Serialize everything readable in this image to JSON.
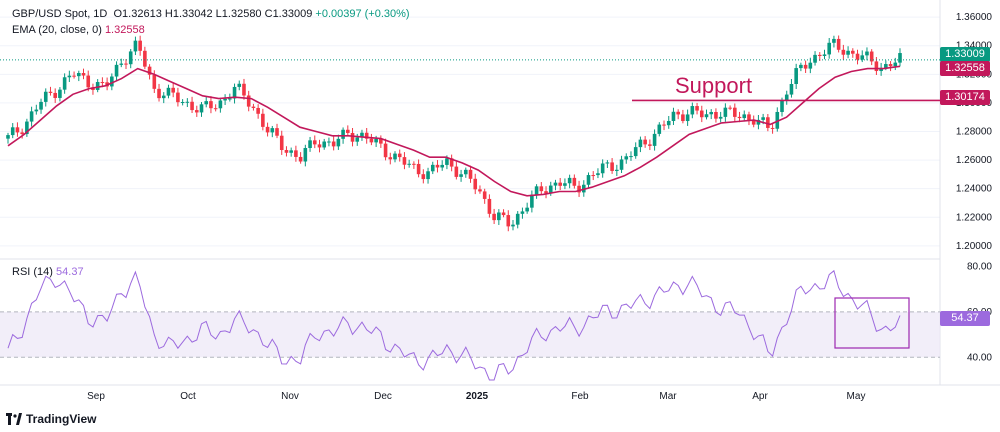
{
  "header": {
    "symbol": "GBP/USD Spot, 1D",
    "open": "O1.32613",
    "high": "H1.33042",
    "low": "L1.32580",
    "close": "C1.33009",
    "change": "+0.00397 (+0.30%)",
    "ema_label": "EMA (20, close, 0)",
    "ema_value": "1.32558",
    "rsi_label": "RSI (14)",
    "rsi_value": "54.37"
  },
  "price_tags": {
    "last": "1.33009",
    "ema": "1.32558",
    "support": "1.30174"
  },
  "annotations": {
    "support_text": "Support"
  },
  "branding": {
    "name": "TradingView"
  },
  "colors": {
    "up": "#089981",
    "down": "#f23645",
    "ema": "#c2185b",
    "rsi": "#9c6ade",
    "support": "#c2185b"
  },
  "chart_data": [
    {
      "type": "candlestick",
      "title": "GBP/USD Spot, 1D",
      "xlabel": "",
      "ylabel": "",
      "ylim": [
        1.195,
        1.365
      ],
      "y_ticks": [
        "1.36000",
        "1.34000",
        "1.32000",
        "1.30000",
        "1.28000",
        "1.26000",
        "1.24000",
        "1.22000",
        "1.20000"
      ],
      "x_ticks": [
        "Sep",
        "Oct",
        "Nov",
        "Dec",
        "2025",
        "Feb",
        "Mar",
        "Apr",
        "May"
      ],
      "support_level": 1.30174,
      "last_price": 1.33009,
      "closes_weekly": [
        1.275,
        1.285,
        1.3,
        1.31,
        1.32,
        1.315,
        1.31,
        1.33,
        1.34,
        1.31,
        1.305,
        1.3,
        1.295,
        1.3,
        1.31,
        1.3,
        1.28,
        1.27,
        1.26,
        1.275,
        1.27,
        1.28,
        1.275,
        1.27,
        1.26,
        1.255,
        1.25,
        1.26,
        1.25,
        1.24,
        1.22,
        1.215,
        1.23,
        1.24,
        1.245,
        1.24,
        1.25,
        1.255,
        1.26,
        1.27,
        1.28,
        1.29,
        1.295,
        1.29,
        1.295,
        1.29,
        1.29,
        1.28,
        1.31,
        1.325,
        1.335,
        1.34,
        1.335,
        1.33,
        1.325,
        1.33
      ]
    },
    {
      "type": "line",
      "title": "EMA (20, close, 0)",
      "last_value": 1.32558,
      "values_weekly": [
        1.27,
        1.278,
        1.288,
        1.298,
        1.306,
        1.31,
        1.312,
        1.317,
        1.324,
        1.32,
        1.315,
        1.31,
        1.305,
        1.303,
        1.304,
        1.303,
        1.297,
        1.29,
        1.283,
        1.28,
        1.277,
        1.277,
        1.276,
        1.275,
        1.271,
        1.267,
        1.262,
        1.262,
        1.258,
        1.253,
        1.245,
        1.238,
        1.235,
        1.236,
        1.238,
        1.238,
        1.241,
        1.245,
        1.249,
        1.255,
        1.262,
        1.27,
        1.278,
        1.282,
        1.286,
        1.287,
        1.288,
        1.285,
        1.29,
        1.3,
        1.31,
        1.318,
        1.322,
        1.324,
        1.324,
        1.3256
      ]
    },
    {
      "type": "line",
      "title": "RSI (14)",
      "ylim": [
        30,
        82
      ],
      "y_ticks": [
        "80.00",
        "60.00",
        "40.00"
      ],
      "band": [
        40,
        60
      ],
      "last_value": 54.37,
      "values_weekly": [
        42,
        55,
        70,
        76,
        66,
        58,
        55,
        70,
        74,
        50,
        44,
        48,
        52,
        50,
        56,
        54,
        45,
        40,
        38,
        52,
        50,
        56,
        52,
        50,
        42,
        40,
        38,
        44,
        41,
        36,
        32,
        35,
        45,
        50,
        54,
        52,
        58,
        60,
        62,
        64,
        68,
        70,
        74,
        66,
        62,
        60,
        52,
        40,
        58,
        70,
        72,
        74,
        66,
        60,
        52,
        54.37
      ]
    }
  ]
}
